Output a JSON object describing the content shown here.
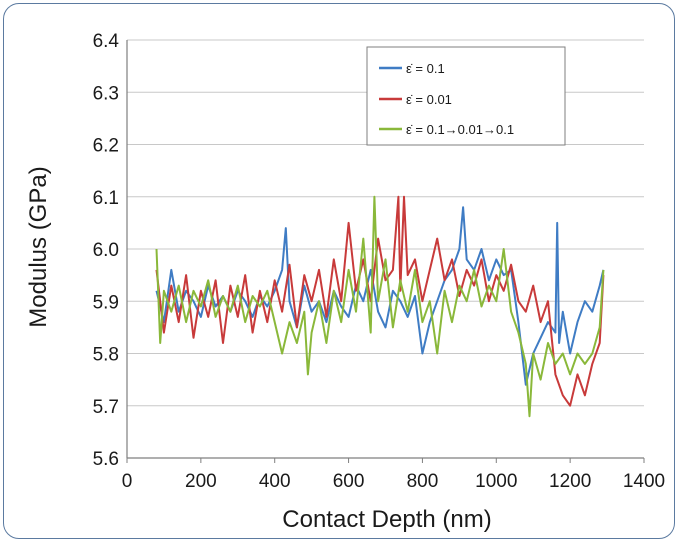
{
  "chart_data": {
    "type": "line",
    "title": "",
    "xlabel": "Contact Depth (nm)",
    "ylabel": "Modulus (GPa)",
    "xlim": [
      0,
      1400
    ],
    "ylim": [
      5.6,
      6.4
    ],
    "xticks": [
      0,
      200,
      400,
      600,
      800,
      1000,
      1200,
      1400
    ],
    "yticks": [
      5.6,
      5.7,
      5.8,
      5.9,
      6.0,
      6.1,
      6.2,
      6.3,
      6.4
    ],
    "grid": "horizontal",
    "legend_position": "top-right",
    "series": [
      {
        "name": "ε̇ = 0.1",
        "color": "#3f7cc4",
        "x": [
          80,
          100,
          120,
          140,
          160,
          180,
          200,
          220,
          240,
          260,
          280,
          300,
          320,
          340,
          360,
          380,
          400,
          420,
          430,
          440,
          460,
          480,
          500,
          520,
          540,
          560,
          580,
          600,
          620,
          640,
          660,
          680,
          700,
          720,
          740,
          760,
          780,
          800,
          820,
          840,
          860,
          880,
          900,
          910,
          920,
          940,
          960,
          980,
          1000,
          1020,
          1040,
          1060,
          1080,
          1100,
          1120,
          1140,
          1160,
          1165,
          1170,
          1180,
          1200,
          1220,
          1240,
          1260,
          1280,
          1290
        ],
        "y": [
          5.92,
          5.86,
          5.96,
          5.88,
          5.92,
          5.9,
          5.87,
          5.93,
          5.89,
          5.91,
          5.88,
          5.92,
          5.9,
          5.87,
          5.91,
          5.89,
          5.92,
          5.96,
          6.04,
          5.9,
          5.85,
          5.93,
          5.88,
          5.9,
          5.86,
          5.92,
          5.89,
          5.87,
          5.93,
          5.9,
          5.96,
          5.88,
          5.85,
          5.92,
          5.9,
          5.87,
          5.91,
          5.8,
          5.86,
          5.9,
          5.94,
          5.96,
          6.0,
          6.08,
          5.98,
          5.96,
          6.0,
          5.94,
          5.98,
          5.95,
          5.96,
          5.86,
          5.74,
          5.8,
          5.83,
          5.86,
          5.84,
          6.05,
          5.82,
          5.88,
          5.8,
          5.86,
          5.9,
          5.88,
          5.93,
          5.96
        ]
      },
      {
        "name": "ε̇ = 0.01",
        "color": "#c83a3a",
        "x": [
          80,
          100,
          120,
          140,
          160,
          180,
          200,
          220,
          240,
          260,
          280,
          300,
          320,
          340,
          360,
          380,
          400,
          420,
          440,
          460,
          480,
          500,
          520,
          540,
          560,
          580,
          600,
          620,
          640,
          660,
          680,
          700,
          720,
          735,
          740,
          750,
          760,
          780,
          800,
          820,
          840,
          860,
          880,
          900,
          920,
          940,
          960,
          980,
          1000,
          1020,
          1040,
          1060,
          1080,
          1100,
          1120,
          1140,
          1160,
          1180,
          1200,
          1220,
          1240,
          1260,
          1280,
          1290
        ],
        "y": [
          5.96,
          5.84,
          5.93,
          5.86,
          5.95,
          5.83,
          5.92,
          5.87,
          5.94,
          5.82,
          5.93,
          5.87,
          5.95,
          5.84,
          5.92,
          5.86,
          5.94,
          5.88,
          5.97,
          5.85,
          5.95,
          5.9,
          5.96,
          5.87,
          5.98,
          5.9,
          6.05,
          5.92,
          5.98,
          5.9,
          6.02,
          5.94,
          5.96,
          6.1,
          5.92,
          6.1,
          5.95,
          5.98,
          5.9,
          5.96,
          6.02,
          5.94,
          5.98,
          5.91,
          5.96,
          5.93,
          5.98,
          5.9,
          5.95,
          5.92,
          5.97,
          5.9,
          5.88,
          5.93,
          5.86,
          5.9,
          5.76,
          5.72,
          5.7,
          5.76,
          5.72,
          5.78,
          5.82,
          5.95
        ]
      },
      {
        "name": "ε̇ = 0.1→0.01→0.1",
        "color": "#8ab83a",
        "x": [
          80,
          90,
          100,
          120,
          140,
          160,
          180,
          200,
          220,
          240,
          260,
          280,
          300,
          320,
          340,
          360,
          380,
          400,
          420,
          440,
          460,
          480,
          490,
          500,
          520,
          540,
          560,
          580,
          600,
          620,
          640,
          660,
          670,
          680,
          700,
          720,
          740,
          760,
          780,
          800,
          820,
          840,
          860,
          880,
          900,
          920,
          940,
          960,
          980,
          1000,
          1020,
          1040,
          1060,
          1080,
          1090,
          1100,
          1120,
          1140,
          1160,
          1180,
          1200,
          1220,
          1240,
          1260,
          1280,
          1290
        ],
        "y": [
          6.0,
          5.82,
          5.92,
          5.88,
          5.93,
          5.86,
          5.92,
          5.89,
          5.94,
          5.87,
          5.91,
          5.88,
          5.93,
          5.86,
          5.91,
          5.89,
          5.92,
          5.86,
          5.8,
          5.86,
          5.82,
          5.88,
          5.76,
          5.84,
          5.9,
          5.82,
          5.92,
          5.86,
          5.96,
          5.88,
          6.02,
          5.84,
          6.1,
          5.9,
          5.98,
          5.85,
          5.94,
          5.88,
          5.96,
          5.86,
          5.9,
          5.8,
          5.92,
          5.86,
          5.93,
          5.9,
          5.96,
          5.89,
          5.93,
          5.9,
          6.0,
          5.88,
          5.84,
          5.78,
          5.68,
          5.8,
          5.75,
          5.82,
          5.78,
          5.8,
          5.76,
          5.8,
          5.78,
          5.8,
          5.85,
          5.96
        ]
      }
    ]
  }
}
